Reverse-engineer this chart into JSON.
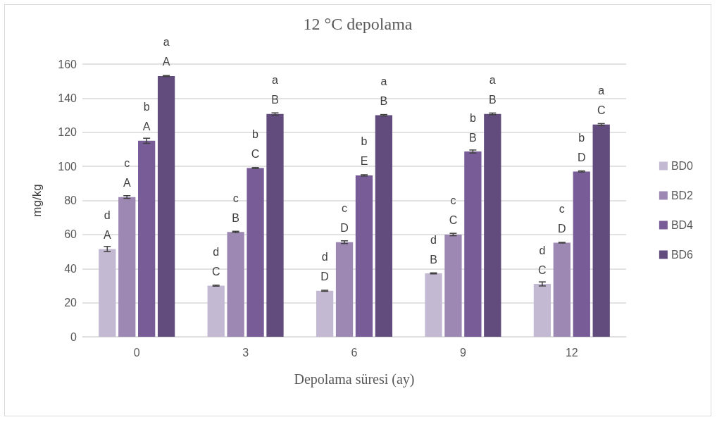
{
  "chart_data": {
    "type": "bar",
    "title": "12 °C depolama",
    "xlabel": "Depolama süresi (ay)",
    "ylabel": "mg/kg",
    "categories": [
      "0",
      "3",
      "6",
      "9",
      "12"
    ],
    "series": [
      {
        "name": "BD0",
        "color": "#c3b9d3",
        "values": [
          51.5,
          30,
          27,
          37.2,
          31
        ],
        "errors": [
          1.5,
          0.3,
          0.3,
          0.3,
          1.2
        ],
        "value_labels": [
          "d\nA",
          "d\nC",
          "d\nD",
          "d\nB",
          "d\nC"
        ]
      },
      {
        "name": "BD2",
        "color": "#9d88b4",
        "values": [
          82,
          61.5,
          55.5,
          60,
          55.2
        ],
        "errors": [
          0.8,
          0.4,
          0.8,
          0.7,
          0.2
        ],
        "value_labels": [
          "c\nA",
          "c\nB",
          "c\nD",
          "c\nC",
          "c\nD"
        ]
      },
      {
        "name": "BD4",
        "color": "#775c98",
        "values": [
          115,
          99,
          94.7,
          108.7,
          97
        ],
        "errors": [
          1.5,
          0.3,
          0.4,
          0.9,
          0.3
        ],
        "value_labels": [
          "b\nA",
          "b\nC",
          "b\nE",
          "b\nB",
          "b\nD"
        ]
      },
      {
        "name": "BD6",
        "color": "#624c7e",
        "values": [
          153,
          130.7,
          130,
          130.8,
          124.5
        ],
        "errors": [
          0.3,
          0.7,
          0.4,
          0.5,
          0.6
        ],
        "value_labels": [
          "a\nA",
          "a\nB",
          "a\nB",
          "a\nB",
          "a\nC"
        ]
      }
    ],
    "ylim": [
      0,
      160
    ],
    "yticks": [
      0,
      20,
      40,
      60,
      80,
      100,
      120,
      140,
      160
    ],
    "grid": "y",
    "legend": "right"
  }
}
